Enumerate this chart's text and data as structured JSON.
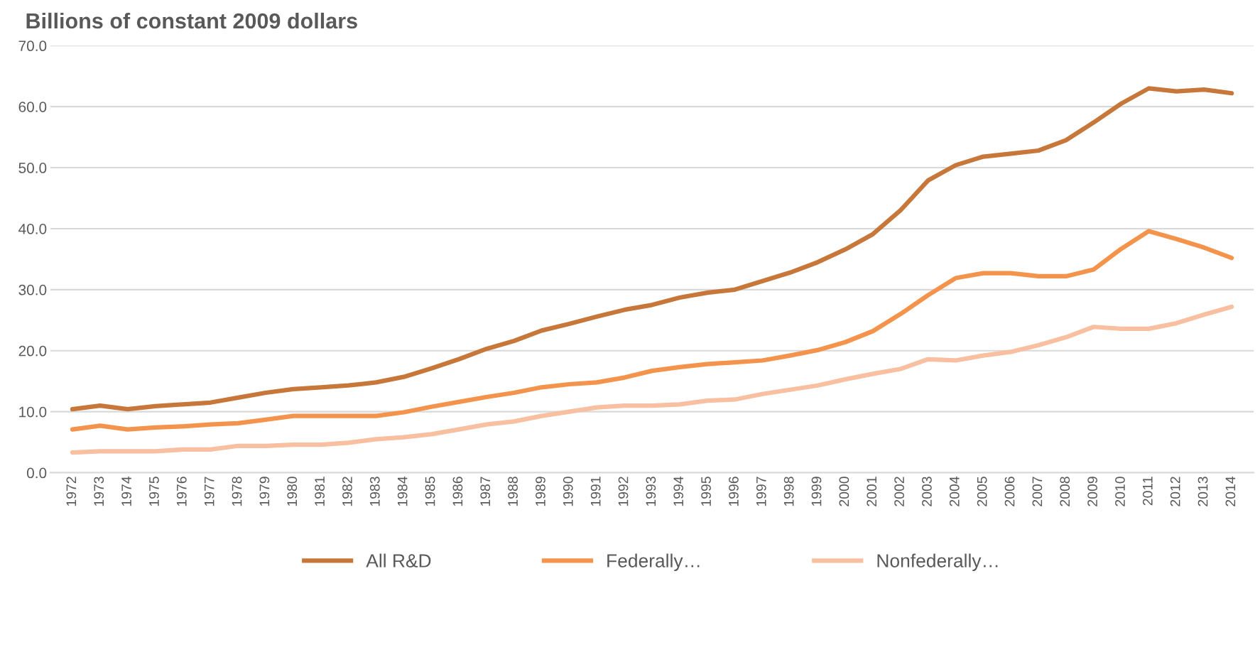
{
  "chart_data": {
    "type": "line",
    "title": "Billions of constant 2009 dollars",
    "categories": [
      "1972",
      "1973",
      "1974",
      "1975",
      "1976",
      "1977",
      "1978",
      "1979",
      "1980",
      "1981",
      "1982",
      "1983",
      "1984",
      "1985",
      "1986",
      "1987",
      "1988",
      "1989",
      "1990",
      "1991",
      "1992",
      "1993",
      "1994",
      "1995",
      "1996",
      "1997",
      "1998",
      "1999",
      "2000",
      "2001",
      "2002",
      "2003",
      "2004",
      "2005",
      "2006",
      "2007",
      "2008",
      "2009",
      "2010",
      "2011",
      "2012",
      "2013",
      "2014"
    ],
    "series": [
      {
        "name": "All R&D",
        "color": "#c8773a",
        "values": [
          10.4,
          11.0,
          10.4,
          10.9,
          11.2,
          11.5,
          12.3,
          13.1,
          13.7,
          14.0,
          14.3,
          14.8,
          15.7,
          17.1,
          18.6,
          20.3,
          21.6,
          23.3,
          24.4,
          25.6,
          26.7,
          27.5,
          28.7,
          29.5,
          30.0,
          31.4,
          32.8,
          34.5,
          36.6,
          39.1,
          43.0,
          47.9,
          50.4,
          51.8,
          52.3,
          52.8,
          54.5,
          57.4,
          60.5,
          63.0,
          62.5,
          62.8,
          62.2
        ]
      },
      {
        "name": "Federally…",
        "color": "#f4944c",
        "values": [
          7.1,
          7.7,
          7.1,
          7.4,
          7.6,
          7.9,
          8.1,
          8.7,
          9.3,
          9.3,
          9.3,
          9.3,
          9.9,
          10.8,
          11.6,
          12.4,
          13.1,
          14.0,
          14.5,
          14.8,
          15.6,
          16.7,
          17.3,
          17.8,
          18.1,
          18.4,
          19.2,
          20.1,
          21.4,
          23.2,
          26.0,
          29.1,
          31.9,
          32.7,
          32.7,
          32.2,
          32.2,
          33.3,
          36.7,
          39.6,
          38.3,
          36.9,
          35.2
        ]
      },
      {
        "name": "Nonfederally…",
        "color": "#f8bfa0",
        "values": [
          3.3,
          3.5,
          3.5,
          3.5,
          3.8,
          3.8,
          4.4,
          4.4,
          4.6,
          4.6,
          4.9,
          5.5,
          5.8,
          6.3,
          7.1,
          7.9,
          8.4,
          9.3,
          10.0,
          10.7,
          11.0,
          11.0,
          11.2,
          11.8,
          12.0,
          12.9,
          13.6,
          14.3,
          15.3,
          16.2,
          17.0,
          18.6,
          18.4,
          19.2,
          19.8,
          20.9,
          22.2,
          23.9,
          23.6,
          23.6,
          24.5,
          25.9,
          27.2
        ]
      }
    ],
    "ylim": [
      0,
      70
    ],
    "yticks": [
      {
        "value": 0,
        "label": "0.0"
      },
      {
        "value": 10,
        "label": "10.0"
      },
      {
        "value": 20,
        "label": "20.0"
      },
      {
        "value": 30,
        "label": "30.0"
      },
      {
        "value": 40,
        "label": "40.0"
      },
      {
        "value": 50,
        "label": "50.0"
      },
      {
        "value": 60,
        "label": "60.0"
      },
      {
        "value": 70,
        "label": "70.0"
      }
    ],
    "grid": "y",
    "legend": "bottom",
    "marker": "none",
    "line_style": "solid"
  }
}
